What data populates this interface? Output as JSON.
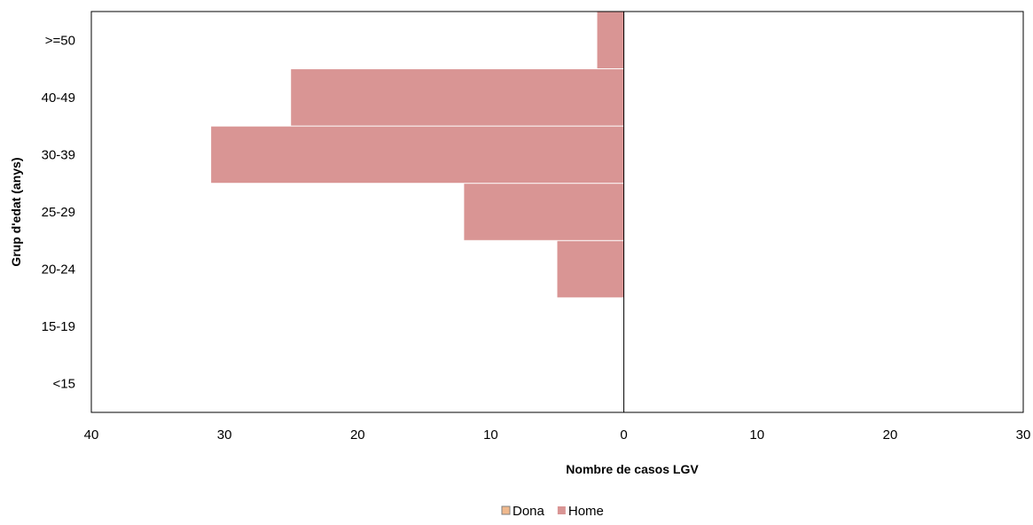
{
  "chart_data": {
    "type": "bar",
    "orientation": "horizontal",
    "layout": "population-pyramid",
    "categories": [
      "<15",
      "15-19",
      "20-24",
      "25-29",
      "30-39",
      "40-49",
      ">=50"
    ],
    "series": [
      {
        "name": "Dona",
        "side": "right",
        "color": "#F0B98D",
        "values": [
          0,
          0,
          0,
          0,
          0,
          0,
          0
        ]
      },
      {
        "name": "Home",
        "side": "left",
        "color": "#D99594",
        "values": [
          0,
          0,
          5,
          12,
          31,
          25,
          2
        ]
      }
    ],
    "xlabel": "Nombre de casos LGV",
    "ylabel": "Grup d'edat (anys)",
    "xlim": [
      -40,
      30
    ],
    "xticks": [
      -40,
      -30,
      -20,
      -10,
      0,
      10,
      20,
      30
    ],
    "xtick_labels": [
      "40",
      "30",
      "20",
      "10",
      "0",
      "10",
      "20",
      "30"
    ],
    "grid": false,
    "legend_position": "bottom"
  }
}
